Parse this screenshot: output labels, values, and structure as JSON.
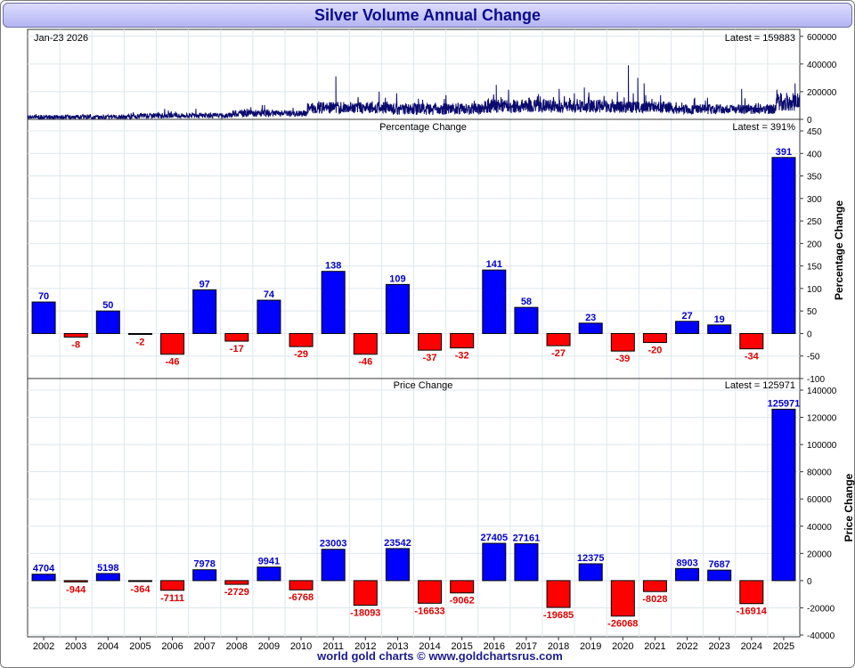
{
  "title": "Silver Volume Annual Change",
  "footer": "world gold charts © www.goldchartsrus.com",
  "colors": {
    "positive": "#0000ff",
    "negative": "#ff0000",
    "volume_line": "#0a0a6e",
    "positive_label": "#0000cc",
    "negative_label": "#dd0000",
    "grid": "#dde8ee",
    "title_text": "#0a0a8c"
  },
  "chart_data": [
    {
      "type": "line",
      "name": "volume",
      "date_label": "Jan-23  2026",
      "latest_label": "Latest = 159883",
      "ylim": [
        0,
        650000
      ],
      "yticks": [
        0,
        200000,
        400000,
        600000
      ],
      "xlim": [
        2001.5,
        2026.05
      ],
      "segments": [
        {
          "x0": 2001.5,
          "x1": 2005.0,
          "base": 15000,
          "amp": 25000
        },
        {
          "x0": 2005.0,
          "x1": 2008.0,
          "base": 25000,
          "amp": 30000
        },
        {
          "x0": 2008.0,
          "x1": 2010.4,
          "base": 40000,
          "amp": 40000
        },
        {
          "x0": 2010.4,
          "x1": 2013.0,
          "base": 80000,
          "amp": 70000
        },
        {
          "x0": 2013.0,
          "x1": 2016.0,
          "base": 70000,
          "amp": 70000
        },
        {
          "x0": 2016.0,
          "x1": 2020.0,
          "base": 90000,
          "amp": 80000
        },
        {
          "x0": 2020.0,
          "x1": 2022.0,
          "base": 85000,
          "amp": 70000
        },
        {
          "x0": 2022.0,
          "x1": 2025.3,
          "base": 70000,
          "amp": 60000
        },
        {
          "x0": 2025.3,
          "x1": 2026.05,
          "base": 120000,
          "amp": 110000
        }
      ],
      "spikes": [
        {
          "x": 2011.3,
          "y": 310000
        },
        {
          "x": 2016.4,
          "y": 250000
        },
        {
          "x": 2018.4,
          "y": 220000
        },
        {
          "x": 2019.2,
          "y": 230000
        },
        {
          "x": 2020.6,
          "y": 390000
        },
        {
          "x": 2020.9,
          "y": 300000
        },
        {
          "x": 2021.1,
          "y": 260000
        },
        {
          "x": 2024.2,
          "y": 220000
        },
        {
          "x": 2025.9,
          "y": 260000
        }
      ]
    },
    {
      "type": "bar",
      "name": "percentage",
      "title": "Percentage Change",
      "latest_label": "Latest = 391%",
      "ylabel": "Percentage Change",
      "ylim": [
        -100,
        450
      ],
      "yticks": [
        -100,
        -50,
        0,
        50,
        100,
        150,
        200,
        250,
        300,
        350,
        400,
        450
      ],
      "categories": [
        "2002",
        "2003",
        "2004",
        "2005",
        "2006",
        "2007",
        "2008",
        "2009",
        "2010",
        "2011",
        "2012",
        "2013",
        "2014",
        "2015",
        "2016",
        "2017",
        "2018",
        "2019",
        "2020",
        "2021",
        "2022",
        "2023",
        "2024",
        "2025"
      ],
      "values": [
        70,
        -8,
        50,
        -2,
        -46,
        97,
        -17,
        74,
        -29,
        138,
        -46,
        109,
        -37,
        -32,
        141,
        58,
        -27,
        23,
        -39,
        -20,
        27,
        19,
        -34,
        391
      ]
    },
    {
      "type": "bar",
      "name": "price",
      "title": "Price Change",
      "latest_label": "Latest = 125971",
      "ylabel": "Price Change",
      "ylim": [
        -40000,
        140000
      ],
      "yticks": [
        -40000,
        -20000,
        0,
        20000,
        40000,
        60000,
        80000,
        100000,
        120000,
        140000
      ],
      "categories": [
        "2002",
        "2003",
        "2004",
        "2005",
        "2006",
        "2007",
        "2008",
        "2009",
        "2010",
        "2011",
        "2012",
        "2013",
        "2014",
        "2015",
        "2016",
        "2017",
        "2018",
        "2019",
        "2020",
        "2021",
        "2022",
        "2023",
        "2024",
        "2025"
      ],
      "values": [
        4704,
        -944,
        5198,
        -364,
        -7111,
        7978,
        -2729,
        9941,
        -6768,
        23003,
        -18093,
        23542,
        -16633,
        -9062,
        27405,
        27161,
        -19685,
        12375,
        -26068,
        -8028,
        8903,
        7687,
        -16914,
        125971
      ]
    }
  ]
}
